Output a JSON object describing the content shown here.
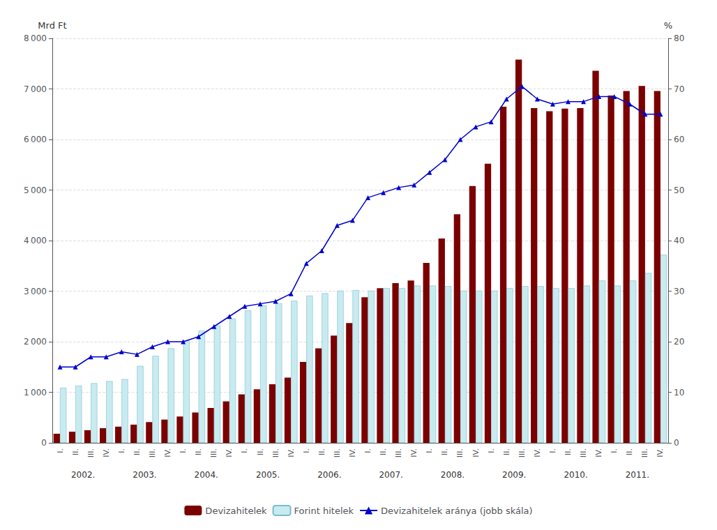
{
  "chart_data": {
    "type": "bar",
    "categories": [
      "I.",
      "II.",
      "III.",
      "IV.",
      "I.",
      "II.",
      "III.",
      "IV.",
      "I.",
      "II.",
      "III.",
      "IV.",
      "I.",
      "II.",
      "III.",
      "IV.",
      "I.",
      "II.",
      "III.",
      "IV.",
      "I.",
      "II.",
      "III.",
      "IV.",
      "I.",
      "II.",
      "III.",
      "IV.",
      "I.",
      "II.",
      "III.",
      "IV.",
      "I.",
      "II.",
      "III.",
      "IV.",
      "I.",
      "II.",
      "III.",
      "IV."
    ],
    "annotations": [
      "2002.",
      "2003.",
      "2004.",
      "2005.",
      "2006.",
      "2007.",
      "2008.",
      "2009.",
      "2010.",
      "2011."
    ],
    "series": [
      {
        "name": "Devizahitelek",
        "type": "bar",
        "color": "#7B0000",
        "values": [
          180,
          220,
          250,
          290,
          320,
          360,
          410,
          460,
          520,
          600,
          690,
          820,
          960,
          1060,
          1160,
          1290,
          1600,
          1870,
          2120,
          2370,
          2880,
          3060,
          3160,
          3210,
          3560,
          4040,
          4520,
          5080,
          5520,
          6650,
          7580,
          6620,
          6560,
          6610,
          6620,
          7360,
          6870,
          6960,
          7060,
          6960
        ]
      },
      {
        "name": "Forint hitelek",
        "type": "bar",
        "color": "#C8EBF0",
        "values": [
          1090,
          1130,
          1180,
          1220,
          1260,
          1520,
          1720,
          1870,
          2020,
          2220,
          2320,
          2460,
          2620,
          2720,
          2760,
          2810,
          2910,
          2960,
          3010,
          3020,
          3010,
          3060,
          3060,
          3110,
          3110,
          3100,
          3010,
          3010,
          3010,
          3060,
          3100,
          3100,
          3060,
          3060,
          3110,
          3210,
          3110,
          3210,
          3360,
          3720
        ]
      },
      {
        "name": "Devizahitelek aránya (jobb skála)",
        "type": "line",
        "axis": "y2",
        "color": "#0000CC",
        "marker": "triangle",
        "values": [
          15.0,
          15.0,
          17.0,
          17.0,
          18.0,
          17.5,
          19.0,
          20.0,
          20.0,
          21.0,
          23.0,
          25.0,
          27.0,
          27.5,
          28.0,
          29.5,
          35.5,
          38.0,
          43.0,
          44.0,
          48.5,
          49.5,
          50.5,
          51.0,
          53.5,
          56.0,
          60.0,
          62.5,
          63.5,
          68.0,
          70.5,
          68.0,
          67.0,
          67.5,
          67.5,
          68.5,
          68.5,
          67.0,
          65.0,
          65.0
        ]
      }
    ],
    "ylabel": "Mrd Ft",
    "y2label": "%",
    "ylim": [
      0,
      8000
    ],
    "yticks": [
      0,
      {
        "value": 1000,
        "label": "1 000"
      },
      {
        "value": 2000,
        "label": "2 000"
      },
      {
        "value": 3000,
        "label": "3 000"
      },
      {
        "value": 4000,
        "label": "4 000"
      },
      {
        "value": 5000,
        "label": "5 000"
      },
      {
        "value": 6000,
        "label": "6 000"
      },
      {
        "value": 7000,
        "label": "7 000"
      },
      {
        "value": 8000,
        "label": "8 000"
      }
    ],
    "y2lim": [
      0,
      80
    ],
    "y2ticks": [
      0,
      10,
      20,
      30,
      40,
      50,
      60,
      70,
      80
    ],
    "grid": true,
    "legend": "bottom"
  }
}
